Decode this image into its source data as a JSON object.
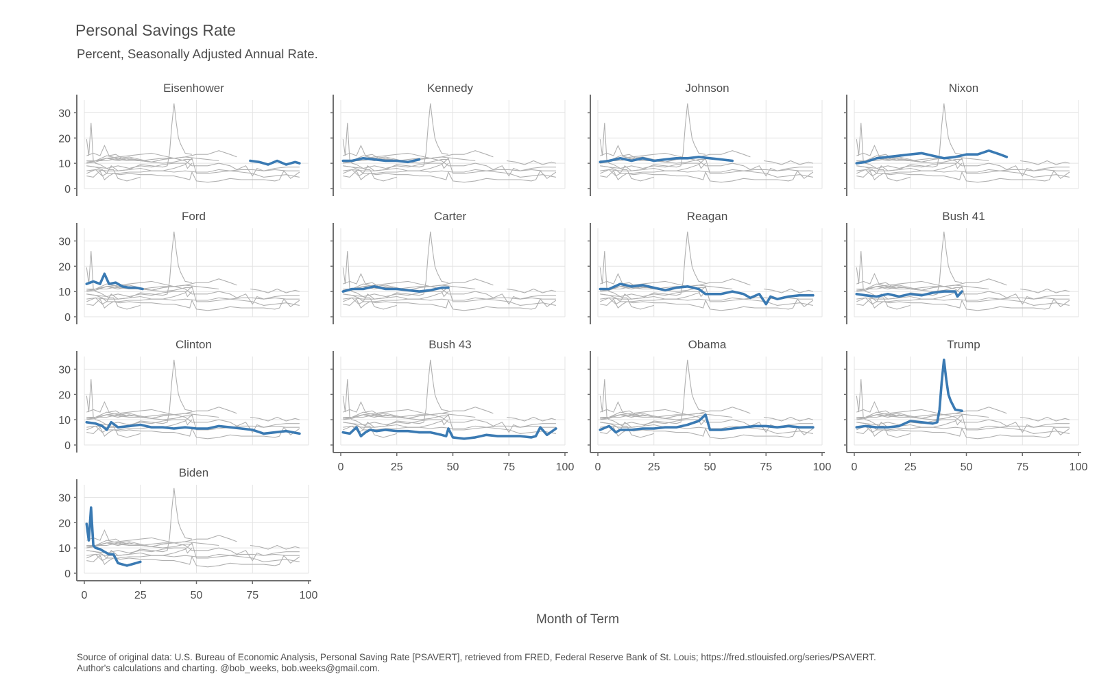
{
  "title": "Personal Savings Rate",
  "subtitle": "Percent, Seasonally Adjusted Annual Rate.",
  "xlabel": "Month of Term",
  "caption": [
    "Source of original data: U.S. Bureau of Economic Analysis, Personal Saving Rate [PSAVERT], retrieved from FRED, Federal Reserve Bank of St. Louis; https://fred.stlouisfed.org/series/PSAVERT.",
    "Author's calculations and charting. @bob_weeks, bob.weeks@gmail.com."
  ],
  "chart_data": {
    "type": "line",
    "facet_layout": "wrap, 4 columns",
    "xlim": [
      0,
      100
    ],
    "ylim": [
      0,
      35
    ],
    "x_ticks": [
      0,
      25,
      50,
      75,
      100
    ],
    "y_ticks": [
      0,
      10,
      20,
      30
    ],
    "highlight_color": "#3a7ab3",
    "background_color": "#b0b0b0",
    "grid": true,
    "series": [
      {
        "name": "Eisenhower",
        "x": [
          74,
          78,
          82,
          86,
          90,
          94,
          96
        ],
        "y": [
          11,
          10.5,
          9.5,
          11,
          9.5,
          10.5,
          10
        ]
      },
      {
        "name": "Kennedy",
        "x": [
          1,
          5,
          10,
          15,
          20,
          25,
          30,
          35
        ],
        "y": [
          11,
          11,
          12,
          11.5,
          11,
          11,
          10.5,
          11.5
        ]
      },
      {
        "name": "Johnson",
        "x": [
          1,
          5,
          10,
          15,
          20,
          25,
          30,
          35,
          40,
          45,
          50,
          55,
          60
        ],
        "y": [
          10.5,
          11,
          12,
          11,
          12,
          11,
          11.5,
          12,
          12,
          12.5,
          12,
          11.5,
          11
        ]
      },
      {
        "name": "Nixon",
        "x": [
          1,
          5,
          10,
          15,
          20,
          25,
          30,
          35,
          40,
          45,
          50,
          55,
          60,
          65,
          68
        ],
        "y": [
          10,
          10.5,
          12,
          12.5,
          13,
          13.5,
          14,
          13,
          12,
          12.5,
          13.5,
          13.5,
          15,
          13.5,
          12.5
        ]
      },
      {
        "name": "Ford",
        "x": [
          1,
          4,
          7,
          9,
          11,
          14,
          17,
          20,
          23,
          26
        ],
        "y": [
          13,
          14,
          13,
          17,
          13,
          13.5,
          12,
          11.5,
          11.5,
          11
        ]
      },
      {
        "name": "Carter",
        "x": [
          1,
          5,
          10,
          15,
          20,
          25,
          30,
          35,
          40,
          45,
          48
        ],
        "y": [
          10,
          11,
          11,
          12,
          11,
          11,
          10.5,
          10,
          10.5,
          11.5,
          11.5
        ]
      },
      {
        "name": "Reagan",
        "x": [
          1,
          5,
          10,
          15,
          20,
          25,
          30,
          35,
          40,
          45,
          48,
          55,
          60,
          65,
          68,
          72,
          75,
          77,
          80,
          85,
          90,
          96
        ],
        "y": [
          11,
          11,
          13,
          12,
          12.5,
          11.5,
          10.5,
          11.5,
          12,
          11,
          9,
          9,
          10,
          9,
          7.5,
          9,
          5,
          8,
          7,
          8,
          8.5,
          8.5
        ]
      },
      {
        "name": "Bush 41",
        "x": [
          1,
          5,
          10,
          15,
          20,
          25,
          30,
          35,
          40,
          45,
          46,
          48
        ],
        "y": [
          9,
          8.5,
          8,
          9,
          8,
          9,
          8.5,
          9.5,
          10,
          10,
          8,
          10
        ]
      },
      {
        "name": "Clinton",
        "x": [
          1,
          5,
          8,
          10,
          12,
          15,
          20,
          25,
          30,
          35,
          40,
          45,
          50,
          55,
          60,
          65,
          70,
          75,
          80,
          85,
          90,
          96
        ],
        "y": [
          9,
          8.5,
          7.5,
          6,
          9,
          7,
          7.5,
          8,
          7,
          7,
          6.5,
          7,
          6.5,
          6.5,
          7.5,
          7,
          6.5,
          6,
          4.5,
          5,
          5.5,
          4.5
        ]
      },
      {
        "name": "Bush 43",
        "x": [
          1,
          4,
          7,
          9,
          11,
          13,
          16,
          20,
          25,
          30,
          35,
          40,
          45,
          47,
          48,
          50,
          55,
          60,
          65,
          70,
          75,
          80,
          85,
          87,
          89,
          92,
          96
        ],
        "y": [
          5,
          4.5,
          7,
          3.5,
          5,
          6,
          5.5,
          6,
          5.5,
          5.5,
          5,
          5,
          4,
          3.5,
          6.5,
          3,
          2.5,
          3,
          4,
          3.5,
          3.5,
          3.5,
          3,
          3.5,
          7,
          4,
          6.5
        ]
      },
      {
        "name": "Obama",
        "x": [
          1,
          5,
          8,
          10,
          15,
          20,
          25,
          30,
          35,
          40,
          45,
          48,
          50,
          55,
          60,
          65,
          70,
          75,
          80,
          85,
          90,
          96
        ],
        "y": [
          6,
          7.5,
          5,
          6,
          6,
          6.5,
          6.5,
          7,
          7,
          8,
          9.5,
          12,
          6,
          6,
          6.5,
          7,
          7.5,
          7.5,
          7,
          7.5,
          7,
          7
        ]
      },
      {
        "name": "Trump",
        "x": [
          1,
          5,
          10,
          15,
          20,
          25,
          30,
          35,
          37,
          38,
          39,
          40,
          41,
          42,
          43,
          45,
          48
        ],
        "y": [
          7,
          7.5,
          7,
          7,
          7.5,
          9.5,
          9,
          8.5,
          9,
          14,
          25,
          33.7,
          26,
          20,
          17.5,
          14,
          13.5
        ]
      },
      {
        "name": "Biden",
        "x": [
          1,
          2,
          3,
          4,
          5,
          7,
          9,
          11,
          13,
          15,
          17,
          19,
          21,
          23,
          25
        ],
        "y": [
          19.5,
          13,
          26,
          11,
          10,
          9.5,
          8.5,
          7.5,
          7.5,
          4,
          3.5,
          3,
          3.5,
          4,
          4.5
        ]
      }
    ]
  }
}
